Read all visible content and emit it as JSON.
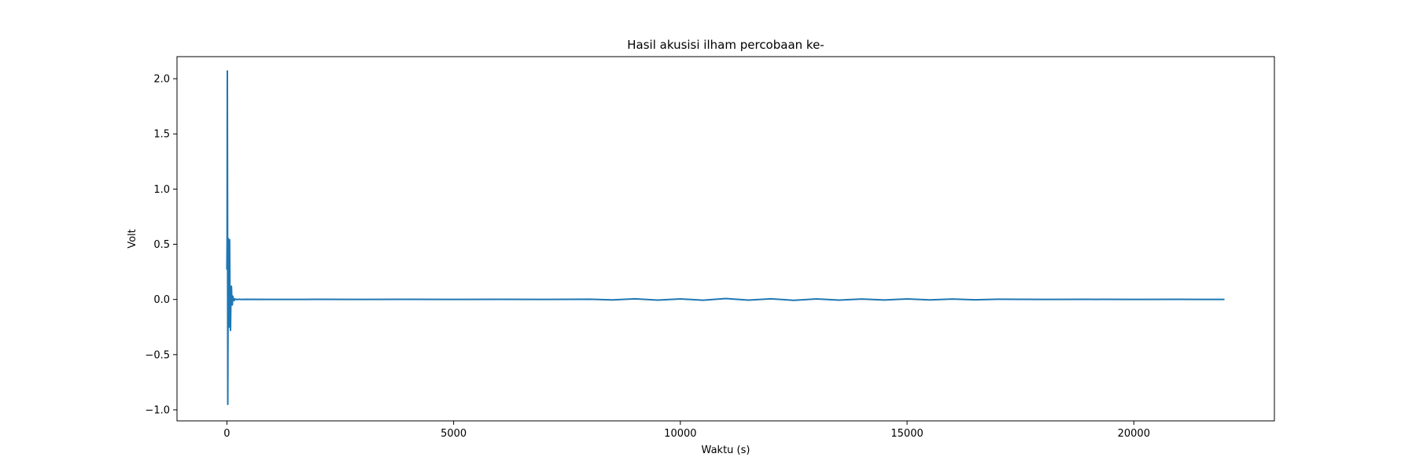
{
  "chart_data": {
    "type": "line",
    "title": "Hasil akusisi ilham percobaan ke-",
    "xlabel": "Waktu (s)",
    "ylabel": "Volt",
    "xlim": [
      -1100,
      23100
    ],
    "ylim": [
      -1.1,
      2.2
    ],
    "xticks": [
      0,
      5000,
      10000,
      15000,
      20000
    ],
    "xtick_labels": [
      "0",
      "5000",
      "10000",
      "15000",
      "20000"
    ],
    "yticks": [
      -1.0,
      -0.5,
      0.0,
      0.5,
      1.0,
      1.5,
      2.0
    ],
    "ytick_labels": [
      "−1.0",
      "−0.5",
      "0.0",
      "0.5",
      "1.0",
      "1.5",
      "2.0"
    ],
    "grid": false,
    "legend": "none",
    "line_color": "#1f77b4",
    "series": [
      {
        "x": [
          0,
          5,
          10,
          15,
          20,
          25,
          30,
          35,
          40,
          45,
          50,
          55,
          60,
          70,
          80,
          90,
          100,
          110,
          120,
          130,
          140,
          150,
          160,
          170,
          180,
          200,
          220,
          250,
          300,
          400,
          1000,
          2000,
          3000,
          4000,
          5000,
          6000,
          7000,
          8000,
          8500,
          9000,
          9500,
          10000,
          10500,
          11000,
          11500,
          12000,
          12500,
          13000,
          13500,
          14000,
          14500,
          15000,
          15500,
          16000,
          16500,
          17000,
          18000,
          19000,
          20000,
          21000,
          22000
        ],
        "y": [
          0.27,
          0.55,
          2.07,
          0.8,
          -0.95,
          -0.2,
          0.35,
          0.55,
          0.1,
          -0.25,
          -0.1,
          0.3,
          0.54,
          -0.15,
          -0.28,
          0.05,
          0.12,
          0.0,
          -0.05,
          0.03,
          0.01,
          0.0,
          -0.01,
          0.005,
          0.0,
          0.003,
          -0.002,
          0.002,
          0.0,
          0.001,
          0.0,
          0.001,
          0.0,
          0.001,
          0.0,
          0.001,
          0.0,
          0.002,
          -0.004,
          0.006,
          -0.006,
          0.005,
          -0.007,
          0.008,
          -0.006,
          0.006,
          -0.008,
          0.005,
          -0.006,
          0.004,
          -0.005,
          0.005,
          -0.004,
          0.004,
          -0.003,
          0.002,
          0.0,
          0.001,
          0.0,
          0.001,
          0.0
        ]
      }
    ]
  }
}
